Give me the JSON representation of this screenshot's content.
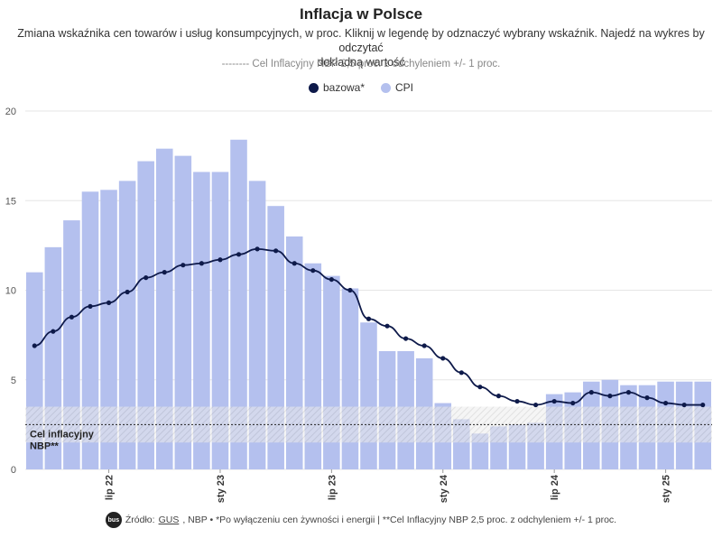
{
  "header": {
    "title": "Inflacja w Polsce",
    "subtitle_line1": "Zmiana wskaźnika cen towarów i usług konsumpcyjnych, w proc. Kliknij w legendę by odznaczyć wybrany wskaźnik. Najedź na wykres by odczytać",
    "subtitle_line2": "dokładną wartość",
    "target_note": "-------- Cel Inflacyjny NBP 2,5 proc. z odchyleniem +/- 1 proc."
  },
  "legend": {
    "bazowa_label": "bazowa*",
    "cpi_label": "CPI"
  },
  "colors": {
    "bar": "#b4c0ee",
    "line": "#0e1a4a",
    "band": "#c8c8c8",
    "grid": "#e6e6e6"
  },
  "chart_data": {
    "type": "bar+line",
    "title": "Inflacja w Polsce",
    "ylim": [
      0,
      20
    ],
    "yticks": [
      "0",
      "5",
      "10",
      "15",
      "20"
    ],
    "xtick_labels": [
      {
        "label": "lip 22",
        "index": 4
      },
      {
        "label": "sty 23",
        "index": 10
      },
      {
        "label": "lip 23",
        "index": 16
      },
      {
        "label": "sty 24",
        "index": 22
      },
      {
        "label": "lip 24",
        "index": 28
      },
      {
        "label": "sty 25",
        "index": 34
      }
    ],
    "series": [
      {
        "name": "CPI",
        "kind": "bar",
        "values": [
          11.0,
          12.4,
          13.9,
          15.5,
          15.6,
          16.1,
          17.2,
          17.9,
          17.5,
          16.6,
          16.6,
          18.4,
          16.1,
          14.7,
          13.0,
          11.5,
          10.8,
          10.1,
          8.2,
          6.6,
          6.6,
          6.2,
          3.7,
          2.8,
          2.0,
          2.4,
          2.5,
          2.6,
          4.2,
          4.3,
          4.9,
          5.0,
          4.7,
          4.7,
          4.9,
          4.9,
          4.9
        ]
      },
      {
        "name": "bazowa*",
        "kind": "line",
        "values": [
          6.9,
          7.7,
          8.5,
          9.1,
          9.3,
          9.9,
          10.7,
          11.0,
          11.4,
          11.5,
          11.7,
          12.0,
          12.3,
          12.2,
          11.5,
          11.1,
          10.6,
          10.0,
          8.4,
          8.0,
          7.3,
          6.9,
          6.2,
          5.4,
          4.6,
          4.1,
          3.8,
          3.6,
          3.8,
          3.7,
          4.3,
          4.1,
          4.3,
          4.0,
          3.7,
          3.6,
          3.6
        ]
      }
    ],
    "target": {
      "value": 2.5,
      "lower": 1.5,
      "upper": 3.5,
      "label_line1": "Cel inflacyjny",
      "label_line2": "NBP**"
    }
  },
  "footer": {
    "logo_text": "bus",
    "prefix": "Źródło:",
    "link_text": "GUS",
    "rest": ", NBP • *Po wyłączeniu cen żywności i energii | **Cel Inflacyjny NBP 2,5 proc. z odchyleniem +/- 1 proc."
  }
}
